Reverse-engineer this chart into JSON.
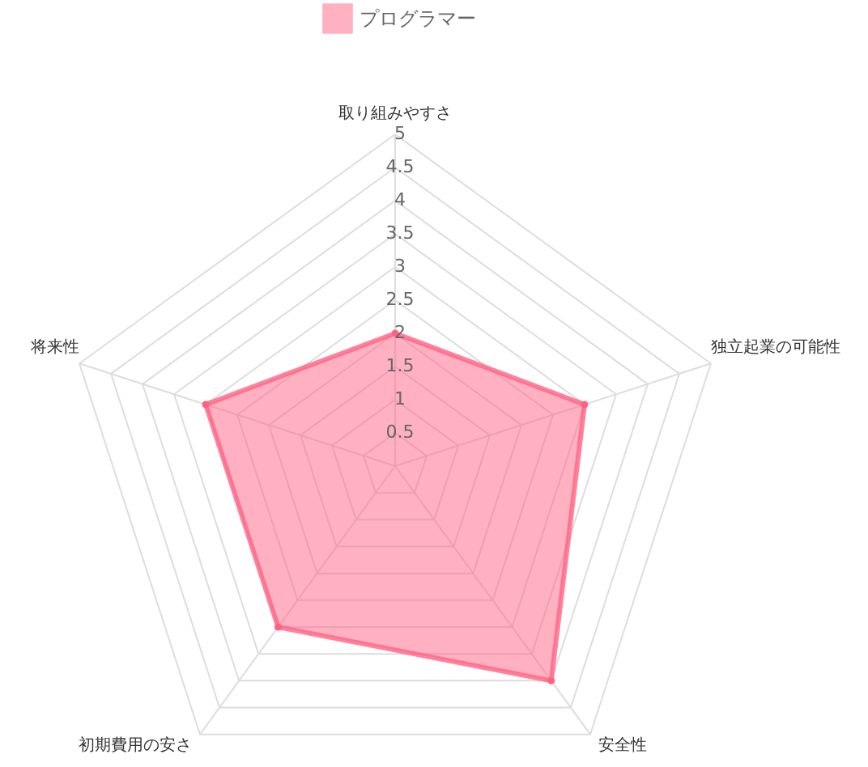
{
  "chart_data": {
    "type": "radar",
    "categories": [
      "取り組みやすさ",
      "独立起業の可能性",
      "安全性",
      "初期費用の安さ",
      "将来性"
    ],
    "series": [
      {
        "name": "プログラマー",
        "color": "#ff6384",
        "values": [
          2,
          3,
          4,
          3,
          3
        ]
      }
    ],
    "ylim": [
      0,
      5
    ],
    "yticks": [
      0.5,
      1,
      1.5,
      2,
      2.5,
      3,
      3.5,
      4,
      4.5,
      5
    ],
    "grid": true,
    "legend": "top"
  }
}
